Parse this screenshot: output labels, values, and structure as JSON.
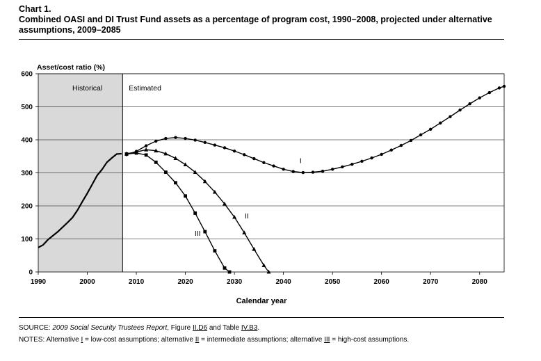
{
  "chart_label": "Chart 1.",
  "chart_data": {
    "type": "line",
    "title": "Combined OASI and DI Trust Fund assets as a percentage of program cost, 1990–2008, projected under alternative assumptions, 2009–2085",
    "xlabel": "Calendar year",
    "ylabel": "Asset/cost ratio (%)",
    "xlim": [
      1990,
      2085
    ],
    "ylim": [
      0,
      600
    ],
    "x_ticks": [
      1990,
      2000,
      2010,
      2020,
      2030,
      2040,
      2050,
      2060,
      2070,
      2080
    ],
    "y_ticks": [
      0,
      100,
      200,
      300,
      400,
      500,
      600
    ],
    "grid": "horizontal",
    "regions": [
      {
        "label": "Historical",
        "from": 1990,
        "to": 2007.2
      },
      {
        "label": "Estimated",
        "from": 2007.2,
        "to": 2085
      }
    ],
    "series": [
      {
        "name": "Historical",
        "label": "",
        "marker": "none",
        "x": [
          1990,
          1991,
          1992,
          1993,
          1994,
          1995,
          1996,
          1997,
          1998,
          1999,
          2000,
          2001,
          2002,
          2003,
          2004,
          2005,
          2006,
          2007
        ],
        "y": [
          74,
          82,
          98,
          110,
          122,
          136,
          150,
          165,
          187,
          213,
          238,
          265,
          292,
          310,
          332,
          345,
          357,
          358
        ]
      },
      {
        "name": "Alternative I",
        "label": "I",
        "marker": "circle",
        "x": [
          2008,
          2010,
          2012,
          2014,
          2016,
          2018,
          2020,
          2022,
          2024,
          2026,
          2028,
          2030,
          2032,
          2034,
          2036,
          2038,
          2040,
          2042,
          2044,
          2046,
          2048,
          2050,
          2052,
          2054,
          2056,
          2058,
          2060,
          2062,
          2064,
          2066,
          2068,
          2070,
          2072,
          2074,
          2076,
          2078,
          2080,
          2082,
          2084,
          2085
        ],
        "y": [
          355,
          365,
          382,
          396,
          404,
          407,
          404,
          399,
          392,
          384,
          376,
          366,
          355,
          343,
          331,
          321,
          311,
          304,
          301,
          302,
          305,
          311,
          318,
          326,
          335,
          345,
          356,
          369,
          383,
          398,
          415,
          432,
          451,
          470,
          490,
          509,
          527,
          543,
          557,
          562
        ]
      },
      {
        "name": "Alternative II",
        "label": "II",
        "marker": "triangle",
        "x": [
          2008,
          2010,
          2012,
          2014,
          2016,
          2018,
          2020,
          2022,
          2024,
          2026,
          2028,
          2030,
          2032,
          2034,
          2036,
          2037
        ],
        "y": [
          358,
          363,
          370,
          367,
          358,
          344,
          325,
          302,
          274,
          242,
          206,
          166,
          119,
          69,
          20,
          0
        ]
      },
      {
        "name": "Alternative III",
        "label": "III",
        "marker": "square",
        "x": [
          2008,
          2010,
          2012,
          2014,
          2016,
          2018,
          2020,
          2022,
          2024,
          2026,
          2028,
          2029
        ],
        "y": [
          357,
          360,
          354,
          332,
          302,
          270,
          230,
          178,
          122,
          64,
          12,
          0
        ]
      }
    ]
  },
  "footer": {
    "source_label": "SOURCE: ",
    "source_title": "2009 Social Security Trustees Report",
    "source_mid": ", Figure ",
    "source_fig": "II.D6",
    "source_and": " and Table ",
    "source_table": "IV.B3",
    "source_end": ".",
    "notes_1": "NOTES: Alternative ",
    "notes_alt1": "I",
    "notes_2": " = low-cost assumptions; alternative ",
    "notes_alt2": "II",
    "notes_3": " = intermediate assumptions; alternative ",
    "notes_alt3": "III",
    "notes_4": " = high-cost assumptions."
  }
}
